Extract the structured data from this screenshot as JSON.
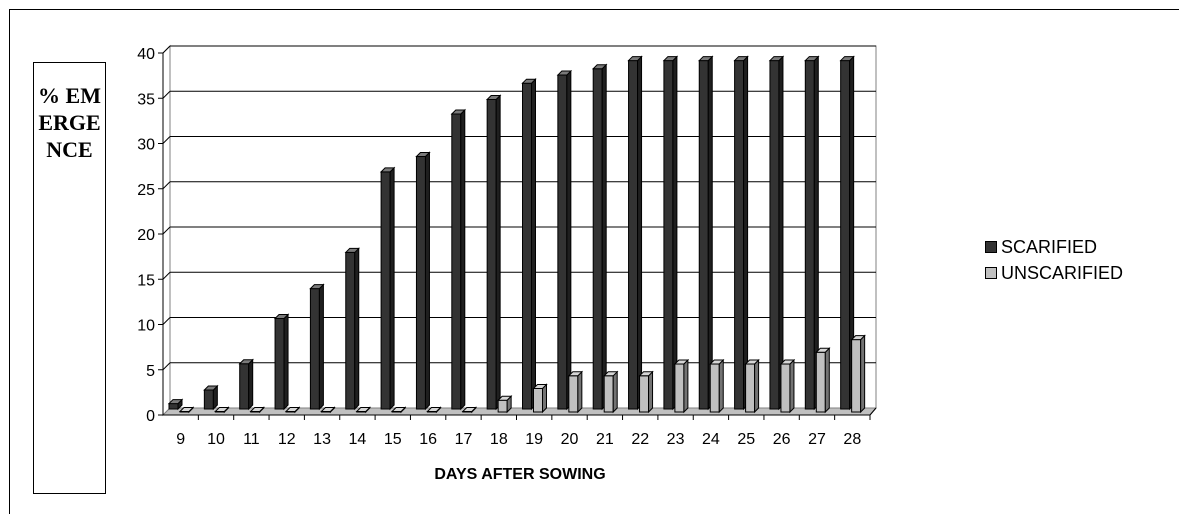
{
  "chart_data": {
    "type": "bar",
    "ylabel": "% EMERGENCE",
    "xlabel": "DAYS AFTER SOWING",
    "categories": [
      "9",
      "10",
      "11",
      "12",
      "13",
      "14",
      "15",
      "16",
      "17",
      "18",
      "19",
      "20",
      "21",
      "22",
      "23",
      "24",
      "25",
      "26",
      "27",
      "28"
    ],
    "ylim": [
      0,
      40
    ],
    "yticks": [
      "0",
      "5",
      "10",
      "15",
      "20",
      "25",
      "30",
      "35",
      "40"
    ],
    "grid": true,
    "legend_placement": "right",
    "series": [
      {
        "name": "SCARIFIED",
        "color": "#333333",
        "values": [
          0.6,
          2.1,
          5.0,
          10.0,
          13.3,
          17.3,
          26.2,
          27.9,
          32.6,
          34.2,
          36.0,
          36.9,
          37.6,
          38.5,
          38.5,
          38.5,
          38.5,
          38.5,
          38.5,
          38.5
        ]
      },
      {
        "name": "UNSCARIFIED",
        "color": "#c0c0c0",
        "values": [
          0,
          0,
          0,
          0,
          0,
          0,
          0,
          0,
          0,
          1.3,
          2.6,
          4.0,
          4.0,
          4.0,
          5.3,
          5.3,
          5.3,
          5.3,
          6.6,
          8.0
        ]
      }
    ]
  }
}
